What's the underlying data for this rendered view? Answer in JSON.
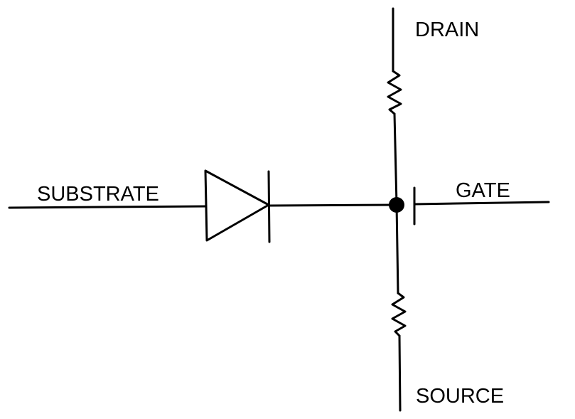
{
  "diagram": {
    "labels": {
      "drain": "DRAIN",
      "gate": "GATE",
      "substrate": "SUBSTRATE",
      "source": "SOURCE"
    },
    "colors": {
      "line": "#000000",
      "background": "#ffffff"
    },
    "components": {
      "upper_resistor": "resistor-symbol",
      "lower_resistor": "resistor-symbol",
      "diode": "diode-symbol",
      "junction": "junction-dot",
      "gate_plate": "gate-plate-symbol"
    }
  }
}
